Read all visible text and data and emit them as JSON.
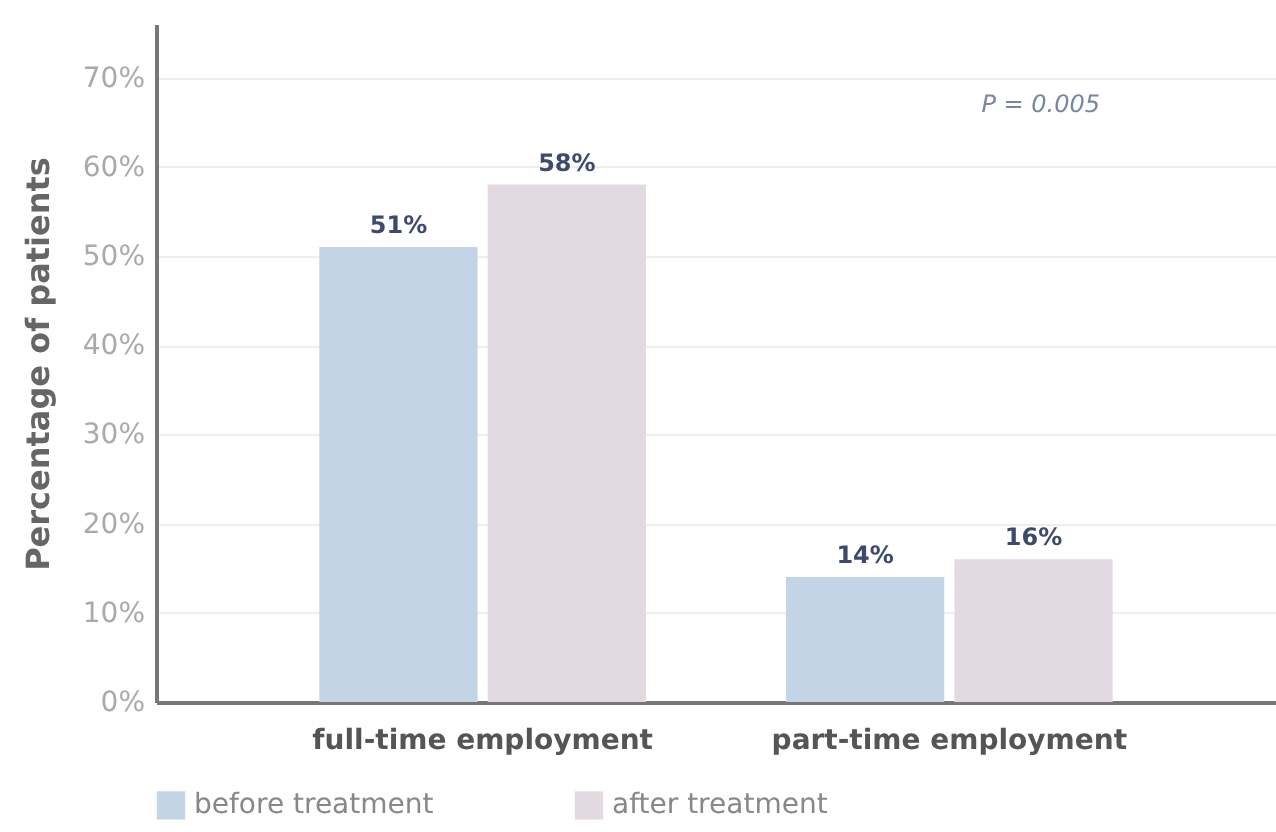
{
  "chart_data": {
    "type": "bar",
    "ylabel": "Percentage of patients",
    "categories": [
      "full-time employment",
      "part-time employment"
    ],
    "series": [
      {
        "name": "before treatment",
        "color": "#c3d4e6",
        "values": [
          51,
          14
        ],
        "value_labels": [
          "51%",
          "14%"
        ]
      },
      {
        "name": "after treatment",
        "color": "#e3d9e0",
        "values": [
          58,
          16
        ],
        "value_labels": [
          "58%",
          "16%"
        ]
      }
    ],
    "ylim": [
      0,
      76
    ],
    "yticks": [
      {
        "value": 0,
        "label": "0%"
      },
      {
        "value": 10,
        "label": "10%"
      },
      {
        "value": 20,
        "label": "20%"
      },
      {
        "value": 30,
        "label": "30%"
      },
      {
        "value": 40,
        "label": "40%"
      },
      {
        "value": 50,
        "label": "50%"
      },
      {
        "value": 60,
        "label": "60%"
      },
      {
        "value": 70,
        "label": "70%"
      }
    ],
    "grid": "y",
    "legend": "bottom",
    "annotations": [
      "P = 0.005"
    ]
  }
}
